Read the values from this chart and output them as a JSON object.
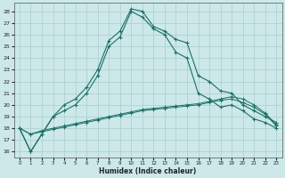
{
  "xlabel": "Humidex (Indice chaleur)",
  "background_color": "#cce8e8",
  "grid_color": "#aacece",
  "line_color": "#1a7068",
  "xlim": [
    -0.5,
    23.5
  ],
  "ylim": [
    15.5,
    28.7
  ],
  "yticks": [
    16,
    17,
    18,
    19,
    20,
    21,
    22,
    23,
    24,
    25,
    26,
    27,
    28
  ],
  "xticks": [
    0,
    1,
    2,
    3,
    4,
    5,
    6,
    7,
    8,
    9,
    10,
    11,
    12,
    13,
    14,
    15,
    16,
    17,
    18,
    19,
    20,
    21,
    22,
    23
  ],
  "line1_x": [
    0,
    1,
    2,
    3,
    4,
    5,
    6,
    7,
    8,
    9,
    10,
    11,
    12,
    13,
    14,
    15,
    16,
    17,
    18,
    19,
    20,
    21,
    22,
    23
  ],
  "line1_y": [
    18.0,
    16.0,
    17.5,
    19.0,
    20.0,
    20.5,
    21.5,
    23.0,
    25.5,
    26.3,
    28.2,
    28.0,
    26.7,
    26.3,
    25.6,
    25.3,
    22.5,
    22.0,
    21.2,
    21.0,
    20.0,
    19.5,
    19.0,
    18.5
  ],
  "line2_x": [
    0,
    1,
    2,
    3,
    4,
    5,
    6,
    7,
    8,
    9,
    10,
    11,
    12,
    13,
    14,
    15,
    16,
    17,
    18,
    19,
    20,
    21,
    22,
    23
  ],
  "line2_y": [
    18.0,
    16.0,
    17.5,
    19.0,
    19.5,
    20.0,
    21.0,
    22.5,
    25.0,
    25.8,
    28.0,
    27.5,
    26.5,
    26.0,
    24.5,
    24.0,
    21.0,
    20.5,
    19.8,
    20.0,
    19.5,
    18.8,
    18.5,
    18.0
  ],
  "line3_x": [
    0,
    1,
    2,
    3,
    4,
    5,
    6,
    7,
    8,
    9,
    10,
    11,
    12,
    13,
    14,
    15,
    16,
    17,
    18,
    19,
    20,
    21,
    22,
    23
  ],
  "line3_y": [
    18.0,
    17.5,
    17.7,
    17.9,
    18.1,
    18.3,
    18.5,
    18.7,
    18.9,
    19.1,
    19.3,
    19.5,
    19.6,
    19.7,
    19.8,
    19.9,
    20.0,
    20.2,
    20.4,
    20.5,
    20.2,
    19.8,
    19.2,
    18.2
  ],
  "line4_x": [
    0,
    1,
    2,
    3,
    4,
    5,
    6,
    7,
    8,
    9,
    10,
    11,
    12,
    13,
    14,
    15,
    16,
    17,
    18,
    19,
    20,
    21,
    22,
    23
  ],
  "line4_y": [
    18.0,
    17.5,
    17.8,
    18.0,
    18.2,
    18.4,
    18.6,
    18.8,
    19.0,
    19.2,
    19.4,
    19.6,
    19.7,
    19.8,
    19.9,
    20.0,
    20.1,
    20.3,
    20.5,
    20.7,
    20.5,
    20.0,
    19.3,
    18.3
  ]
}
